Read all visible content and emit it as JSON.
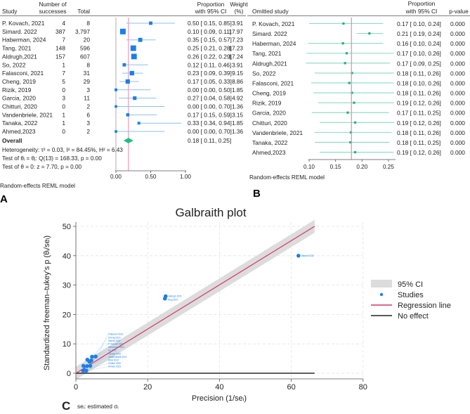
{
  "panelA": {
    "letter": "A",
    "headers": {
      "study": "Study",
      "successes_1": "Number of",
      "successes_2": "successes",
      "total": "Total",
      "prop_1": "Proportion",
      "prop_2": "with 95% CI",
      "weight_1": "Weight",
      "weight_2": "(%)"
    },
    "studies": [
      {
        "study": "P. Kovach, 2021",
        "successes": "4",
        "total": "8",
        "prop": 0.5,
        "lo": 0.15,
        "hi": 0.85,
        "text": "0.50 [ 0.15,  0.85]",
        "weight": "3.91"
      },
      {
        "study": "Simard. 2022",
        "successes": "387",
        "total": "3,797",
        "prop": 0.1,
        "lo": 0.09,
        "hi": 0.11,
        "text": "0.10 [ 0.09,  0.11]",
        "weight": "17.97"
      },
      {
        "study": "Haberman, 2024",
        "successes": "7",
        "total": "20",
        "prop": 0.35,
        "lo": 0.15,
        "hi": 0.57,
        "text": "0.35 [ 0.15,  0.57]",
        "weight": "7.23"
      },
      {
        "study": "Tang, 2021",
        "successes": "148",
        "total": "596",
        "prop": 0.25,
        "lo": 0.21,
        "hi": 0.28,
        "text": "0.25 [ 0.21,  0.28]",
        "weight": "17.23"
      },
      {
        "study": "Aldrugh,2021",
        "successes": "157",
        "total": "607",
        "prop": 0.26,
        "lo": 0.22,
        "hi": 0.29,
        "text": "0.26 [ 0.22,  0.29]",
        "weight": "17.24"
      },
      {
        "study": "So, 2022",
        "successes": "1",
        "total": "8",
        "prop": 0.12,
        "lo": 0.11,
        "hi": 0.46,
        "text": "0.12 [ 0.11,  0.46]",
        "weight": "3.91"
      },
      {
        "study": "Falasconi, 2021",
        "successes": "7",
        "total": "31",
        "prop": 0.23,
        "lo": 0.09,
        "hi": 0.39,
        "text": "0.23 [ 0.09,  0.39]",
        "weight": "9.15"
      },
      {
        "study": "Cheng, 2019",
        "successes": "5",
        "total": "29",
        "prop": 0.17,
        "lo": 0.05,
        "hi": 0.33,
        "text": "0.17 [ 0.05,  0.33]",
        "weight": "8.86"
      },
      {
        "study": "Rizik, 2019",
        "successes": "0",
        "total": "3",
        "prop": 0.0,
        "lo": 0.0,
        "hi": 0.5,
        "text": "0.00 [ 0.00,  0.50]",
        "weight": "1.85"
      },
      {
        "study": "Garcia, 2020",
        "successes": "3",
        "total": "11",
        "prop": 0.27,
        "lo": 0.04,
        "hi": 0.58,
        "text": "0.27 [ 0.04,  0.58]",
        "weight": "4.92"
      },
      {
        "study": "Chitturi, 2020",
        "successes": "0",
        "total": "2",
        "prop": 0.0,
        "lo": 0.0,
        "hi": 0.7,
        "text": "0.00 [ 0.00,  0.70]",
        "weight": "1.36"
      },
      {
        "study": "Vandenbriele, 2021",
        "successes": "1",
        "total": "6",
        "prop": 0.17,
        "lo": 0.15,
        "hi": 0.59,
        "text": "0.17 [ 0.15,  0.59]",
        "weight": "3.15"
      },
      {
        "study": "Tanaka, 2022",
        "successes": "1",
        "total": "3",
        "prop": 0.33,
        "lo": 0.34,
        "hi": 0.94,
        "text": "0.33 [ 0.34,  0.94]",
        "weight": "1.85"
      },
      {
        "study": "Ahmed,2023",
        "successes": "0",
        "total": "2",
        "prop": 0.0,
        "lo": 0.0,
        "hi": 0.7,
        "text": "0.00 [ 0.00,  0.70]",
        "weight": "1.36"
      }
    ],
    "overall": {
      "label": "Overall",
      "prop": 0.18,
      "lo": 0.11,
      "hi": 0.25,
      "text": "0.18 [ 0.11,  0.25]"
    },
    "heterogeneity": "Heterogeneity: τ² = 0.03, I² = 84.45%, H² = 6.43",
    "test1": "Test of θᵢ = θⱼ: Q(13) = 168.33, p = 0.00",
    "test2": "Test of θ = 0: z = 7.70, p = 0.00",
    "xticks": [
      "0.00",
      "0.50",
      "1.00"
    ],
    "model": "Random-effects REML model"
  },
  "panelB": {
    "letter": "B",
    "headers": {
      "study": "Omitted study",
      "prop_1": "Proportion",
      "prop_2": "with 95% CI",
      "pvalue": "p-value"
    },
    "studies": [
      {
        "study": "P. Kovach, 2021",
        "prop": 0.165,
        "lo": 0.1,
        "hi": 0.24,
        "text": "0.17 [ 0.10,  0.24]",
        "p": "0.000"
      },
      {
        "study": "Simard. 2022",
        "prop": 0.214,
        "lo": 0.19,
        "hi": 0.24,
        "text": "0.21 [ 0.19,  0.24]",
        "p": "0.000"
      },
      {
        "study": "Haberman, 2024",
        "prop": 0.164,
        "lo": 0.098,
        "hi": 0.24,
        "text": "0.16 [ 0.10,  0.24]",
        "p": "0.000"
      },
      {
        "study": "Tang, 2021",
        "prop": 0.171,
        "lo": 0.095,
        "hi": 0.26,
        "text": "0.17 [ 0.10,  0.26]",
        "p": "0.000"
      },
      {
        "study": "Aldrugh,2021",
        "prop": 0.168,
        "lo": 0.094,
        "hi": 0.253,
        "text": "0.17 [ 0.09,  0.25]",
        "p": "0.000"
      },
      {
        "study": "So, 2022",
        "prop": 0.181,
        "lo": 0.111,
        "hi": 0.26,
        "text": "0.18 [ 0.11,  0.26]",
        "p": "0.000"
      },
      {
        "study": "Falasconi, 2021",
        "prop": 0.176,
        "lo": 0.104,
        "hi": 0.26,
        "text": "0.18 [ 0.10,  0.26]",
        "p": "0.000"
      },
      {
        "study": "Cheng, 2019",
        "prop": 0.181,
        "lo": 0.108,
        "hi": 0.26,
        "text": "0.18 [ 0.11,  0.26]",
        "p": "0.000"
      },
      {
        "study": "Rizik, 2019",
        "prop": 0.185,
        "lo": 0.117,
        "hi": 0.26,
        "text": "0.19 [ 0.12,  0.26]",
        "p": "0.000"
      },
      {
        "study": "Garcia, 2020",
        "prop": 0.173,
        "lo": 0.105,
        "hi": 0.251,
        "text": "0.17 [ 0.11,  0.25]",
        "p": "0.000"
      },
      {
        "study": "Chitturi, 2020",
        "prop": 0.187,
        "lo": 0.12,
        "hi": 0.26,
        "text": "0.19 [ 0.12,  0.26]",
        "p": "0.000"
      },
      {
        "study": "Vandenbriele, 2021",
        "prop": 0.179,
        "lo": 0.11,
        "hi": 0.256,
        "text": "0.18 [ 0.11,  0.26]",
        "p": "0.000"
      },
      {
        "study": "Tanaka, 2022",
        "prop": 0.178,
        "lo": 0.111,
        "hi": 0.252,
        "text": "0.18 [ 0.11,  0.25]",
        "p": "0.000"
      },
      {
        "study": "Ahmed,2023",
        "prop": 0.187,
        "lo": 0.12,
        "hi": 0.26,
        "text": "0.19 [ 0.12,  0.26]",
        "p": "0.000"
      }
    ],
    "overall": 0.18,
    "xticks": [
      "0.10",
      "0.15",
      "0.20",
      "0.25"
    ],
    "model": "Random-effects REML model"
  },
  "chart_data": [
    {
      "type": "forest",
      "panel": "A",
      "overall": 0.18,
      "xlim": [
        0,
        1
      ]
    },
    {
      "type": "forest",
      "panel": "B",
      "overall": 0.18,
      "xlim": [
        0.1,
        0.25
      ]
    },
    {
      "type": "scatter",
      "panel": "C",
      "letter": "C",
      "title": "Galbraith plot",
      "xlabel": "Precision (1/seᵢ)",
      "ylabel": "Standardized freeman–tukey's p (θᵢ/seᵢ)",
      "footnote": "seᵢ: estimated σᵢ",
      "xlim": [
        0,
        80
      ],
      "ylim": [
        0,
        50
      ],
      "xticks": [
        "0",
        "20",
        "40",
        "60",
        "80"
      ],
      "yticks": [
        "0",
        "10",
        "20",
        "30",
        "40",
        "50"
      ],
      "grid": true,
      "points": [
        {
          "name": "Simard 2022",
          "x": 62,
          "y": 40
        },
        {
          "name": "Aldrugh 2021",
          "x": 25,
          "y": 26.2
        },
        {
          "name": "Tang 2021",
          "x": 24.8,
          "y": 25.4
        },
        {
          "name": "Falasconi 2021",
          "x": 5.5,
          "y": 5.7
        },
        {
          "name": "Cheng 2019",
          "x": 4.5,
          "y": 5.6
        },
        {
          "name": "Garcia 2020",
          "x": 3.2,
          "y": 4.6
        },
        {
          "name": "Haberman 2024",
          "x": 3.8,
          "y": 3.9
        },
        {
          "name": "P. Kovach 2021",
          "x": 4.3,
          "y": 4.3
        },
        {
          "name": "So 2022",
          "x": 2.1,
          "y": 2.5
        },
        {
          "name": "Vandenbriele 2021",
          "x": 3.1,
          "y": 2.4
        },
        {
          "name": "Tanaka 2022",
          "x": 4.0,
          "y": 2.5
        },
        {
          "name": "Rizik 2019",
          "x": 2.4,
          "y": 1.0
        },
        {
          "name": "Chitturi 2020",
          "x": 2.0,
          "y": 0.9
        },
        {
          "name": "Ahmed 2023",
          "x": 2.9,
          "y": 0.9
        }
      ],
      "regression": {
        "slope": 0.752,
        "xmax": 66.5,
        "ci_halfwidth": 2.2
      },
      "no_effect": 0,
      "legend": [
        "95% CI",
        "Studies",
        "Regression line",
        "No effect"
      ],
      "legend_position": "right",
      "colors": {
        "points": "#1a7fe8",
        "regression": "#d6336c",
        "ci": "#dcdcdc",
        "no_effect": "#000000"
      }
    }
  ],
  "colors": {
    "forestA": "#1a7fe8",
    "forestA_ci": "#8cc0f2",
    "forestB": "#22b07d",
    "forestB_ci": "#86dcbd",
    "overall_line": "#e88aa6",
    "diamond": "#1fbf84"
  }
}
